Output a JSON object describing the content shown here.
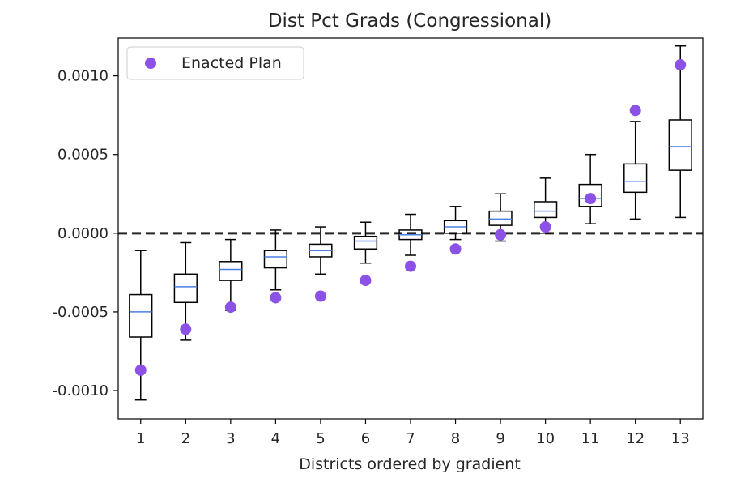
{
  "chart_data": {
    "type": "box",
    "title": "Dist Pct Grads (Congressional)",
    "xlabel": "Districts ordered by gradient",
    "ylabel": "",
    "categories": [
      "1",
      "2",
      "3",
      "4",
      "5",
      "6",
      "7",
      "8",
      "9",
      "10",
      "11",
      "12",
      "13"
    ],
    "yticks": [
      "0.0010",
      "0.0005",
      "0.0000",
      "-0.0005",
      "-0.0010"
    ],
    "ytick_values": [
      0.001,
      0.0005,
      0,
      -0.0005,
      -0.001
    ],
    "ylim": [
      -0.00118,
      0.00124
    ],
    "xlim": [
      0.5,
      13.5
    ],
    "reference_line": 0,
    "boxes": [
      {
        "whislo": -0.00106,
        "q1": -0.00066,
        "med": -0.0005,
        "q3": -0.00039,
        "whishi": -0.00011
      },
      {
        "whislo": -0.00068,
        "q1": -0.00044,
        "med": -0.00034,
        "q3": -0.00026,
        "whishi": -6e-05
      },
      {
        "whislo": -0.00049,
        "q1": -0.0003,
        "med": -0.00023,
        "q3": -0.00018,
        "whishi": -4e-05
      },
      {
        "whislo": -0.00036,
        "q1": -0.00022,
        "med": -0.00015,
        "q3": -0.00011,
        "whishi": 2e-05
      },
      {
        "whislo": -0.00026,
        "q1": -0.00015,
        "med": -0.00011,
        "q3": -7e-05,
        "whishi": 4e-05
      },
      {
        "whislo": -0.00019,
        "q1": -0.0001,
        "med": -5e-05,
        "q3": -2e-05,
        "whishi": 7e-05
      },
      {
        "whislo": -0.00014,
        "q1": -4e-05,
        "med": -1e-05,
        "q3": 2e-05,
        "whishi": 0.00012
      },
      {
        "whislo": -4e-05,
        "q1": 0.0,
        "med": 4e-05,
        "q3": 8e-05,
        "whishi": 0.00017
      },
      {
        "whislo": -5e-05,
        "q1": 5e-05,
        "med": 9e-05,
        "q3": 0.00014,
        "whishi": 0.00025
      },
      {
        "whislo": 0.0,
        "q1": 0.0001,
        "med": 0.00014,
        "q3": 0.0002,
        "whishi": 0.00035
      },
      {
        "whislo": 6e-05,
        "q1": 0.00017,
        "med": 0.00022,
        "q3": 0.00031,
        "whishi": 0.0005
      },
      {
        "whislo": 9e-05,
        "q1": 0.00026,
        "med": 0.00033,
        "q3": 0.00044,
        "whishi": 0.00071
      },
      {
        "whislo": 0.0001,
        "q1": 0.0004,
        "med": 0.00055,
        "q3": 0.00072,
        "whishi": 0.00119
      }
    ],
    "series": [
      {
        "name": "Enacted Plan",
        "type": "scatter",
        "values": [
          -0.00087,
          -0.00061,
          -0.00047,
          -0.00041,
          -0.0004,
          -0.0003,
          -0.00021,
          -0.0001,
          -1e-05,
          4e-05,
          0.00022,
          0.00078,
          0.00107
        ]
      }
    ],
    "legend_position": "top-left",
    "grid": false,
    "colors": {
      "enacted": "#8c52e5",
      "median": "#4a7fe0",
      "box": "#000000",
      "reference": "#262626"
    }
  }
}
